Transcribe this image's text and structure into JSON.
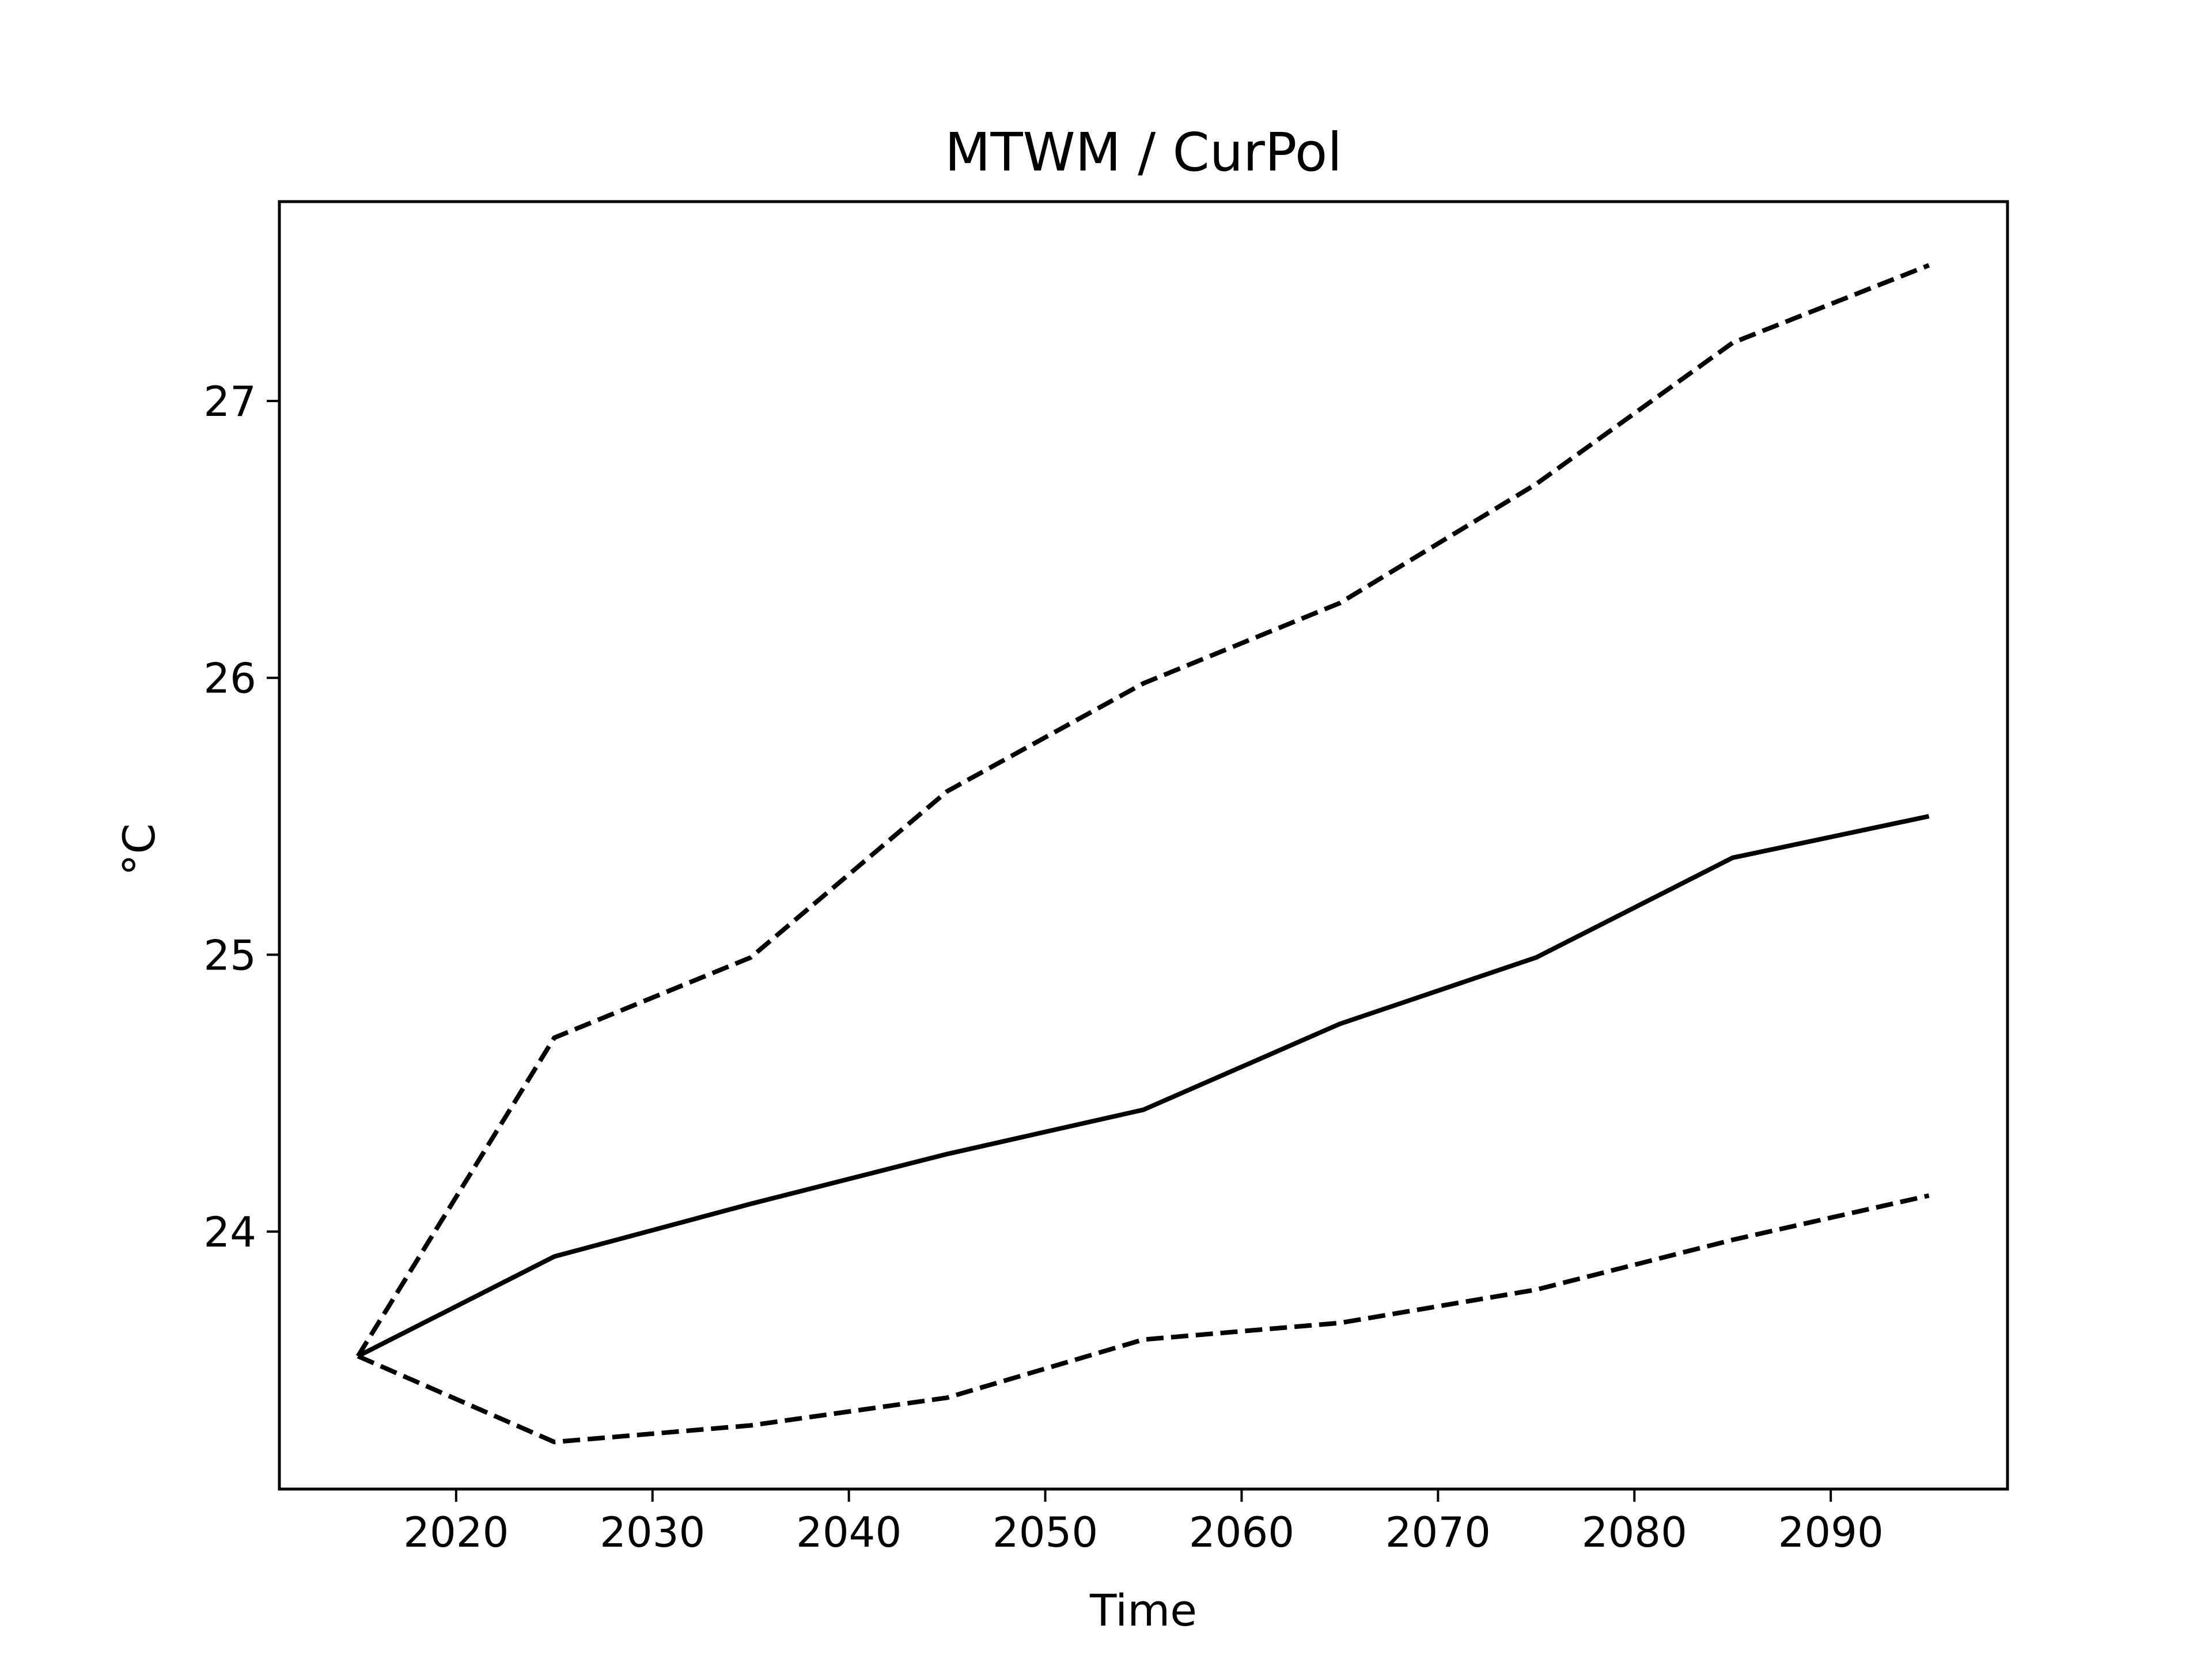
{
  "chart_data": {
    "type": "line",
    "title": "MTWM / CurPol",
    "xlabel": "Time",
    "ylabel": "°C",
    "xlim": [
      2011,
      2099
    ],
    "ylim": [
      23.07,
      27.72
    ],
    "xticks": [
      2020,
      2030,
      2040,
      2050,
      2060,
      2070,
      2080,
      2090
    ],
    "yticks": [
      24,
      25,
      26,
      27
    ],
    "grid": false,
    "legend": "none",
    "x": [
      2015,
      2025,
      2035,
      2045,
      2055,
      2065,
      2075,
      2085,
      2095
    ],
    "series": [
      {
        "style": "solid",
        "color": "#000000",
        "values": [
          23.55,
          23.91,
          24.1,
          24.28,
          24.44,
          24.75,
          24.99,
          25.35,
          25.5
        ]
      },
      {
        "style": "dashed",
        "color": "#000000",
        "values": [
          23.55,
          24.7,
          24.99,
          25.59,
          25.98,
          26.27,
          26.7,
          27.21,
          27.49
        ]
      },
      {
        "style": "dashed",
        "color": "#000000",
        "values": [
          23.55,
          23.24,
          23.3,
          23.4,
          23.61,
          23.67,
          23.79,
          23.97,
          24.13
        ]
      }
    ]
  }
}
